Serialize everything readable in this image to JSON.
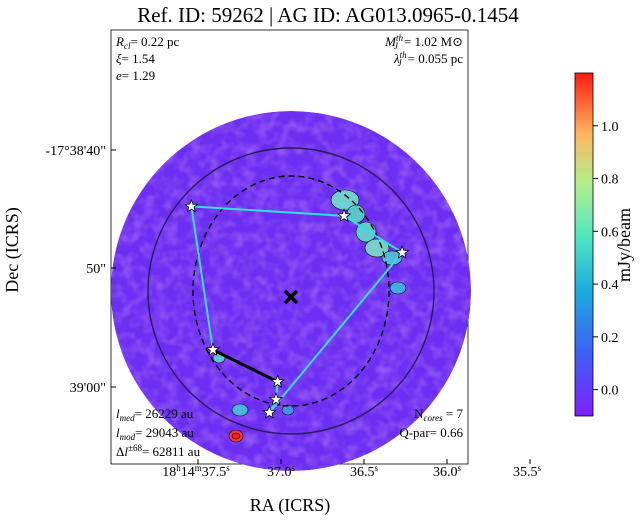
{
  "chart_data": {
    "type": "heatmap",
    "title": "Ref. ID: 59262 | AG ID: AG013.0965-0.1454",
    "xlabel": "RA (ICRS)",
    "ylabel": "Dec (ICRS)",
    "x_ticks": [
      {
        "label": "18h14m37.5s",
        "h": "18",
        "m": "14",
        "s": "37.5",
        "ra_s": 37.5
      },
      {
        "label": "37.0s",
        "s": "37.0",
        "ra_s": 37.0
      },
      {
        "label": "36.5s",
        "s": "36.5",
        "ra_s": 36.5
      },
      {
        "label": "36.0s",
        "s": "36.0",
        "ra_s": 36.0
      },
      {
        "label": "35.5s",
        "s": "35.5",
        "ra_s": 35.5
      }
    ],
    "y_ticks": [
      {
        "label": "-17°38'40\"",
        "dec_arcsec": 40
      },
      {
        "label": "50\"",
        "dec_arcsec": 50
      },
      {
        "label": "39'00\"",
        "dec_arcsec": 60
      }
    ],
    "colorbar": {
      "label": "mJy/beam",
      "range": [
        -0.1,
        1.2
      ],
      "ticks": [
        "0.0",
        "0.2",
        "0.4",
        "0.6",
        "0.8",
        "1.0"
      ],
      "tick_values": [
        0.0,
        0.2,
        0.4,
        0.6,
        0.8,
        1.0
      ],
      "colormap": "rainbow"
    },
    "annotations": {
      "top_left": [
        "Rcl= 0.22 pc",
        "ξ= 1.54",
        "e= 1.29"
      ],
      "top_right": [
        "Mjth= 1.02 M⊙",
        "λjth= 0.055 pc"
      ],
      "bottom_left": [
        "lmed= 26229 au",
        "lmod= 29043 au",
        "Δl±68= 62811 au"
      ],
      "bottom_right": [
        "Ncores = 7",
        "Q-par= 0.66"
      ]
    },
    "cores": [
      {
        "ra_s": 37.54,
        "dec_arcsec": 44.8
      },
      {
        "ra_s": 36.62,
        "dec_arcsec": 45.6
      },
      {
        "ra_s": 36.27,
        "dec_arcsec": 48.7
      },
      {
        "ra_s": 37.41,
        "dec_arcsec": 56.9
      },
      {
        "ra_s": 37.02,
        "dec_arcsec": 59.6
      },
      {
        "ra_s": 37.03,
        "dec_arcsec": 61.1
      },
      {
        "ra_s": 37.07,
        "dec_arcsec": 62.2
      }
    ],
    "mst_edges": [
      [
        0,
        1
      ],
      [
        1,
        2
      ],
      [
        0,
        3
      ],
      [
        3,
        4
      ],
      [
        4,
        5
      ],
      [
        5,
        6
      ],
      [
        6,
        2
      ]
    ],
    "emphasized_edge": [
      3,
      4
    ],
    "center": {
      "ra_s": 36.98,
      "dec_arcsec": 52.2
    },
    "colors": {
      "mst": "#33e0e0",
      "core_marker": "#ffffff",
      "contour": "#000000"
    }
  }
}
